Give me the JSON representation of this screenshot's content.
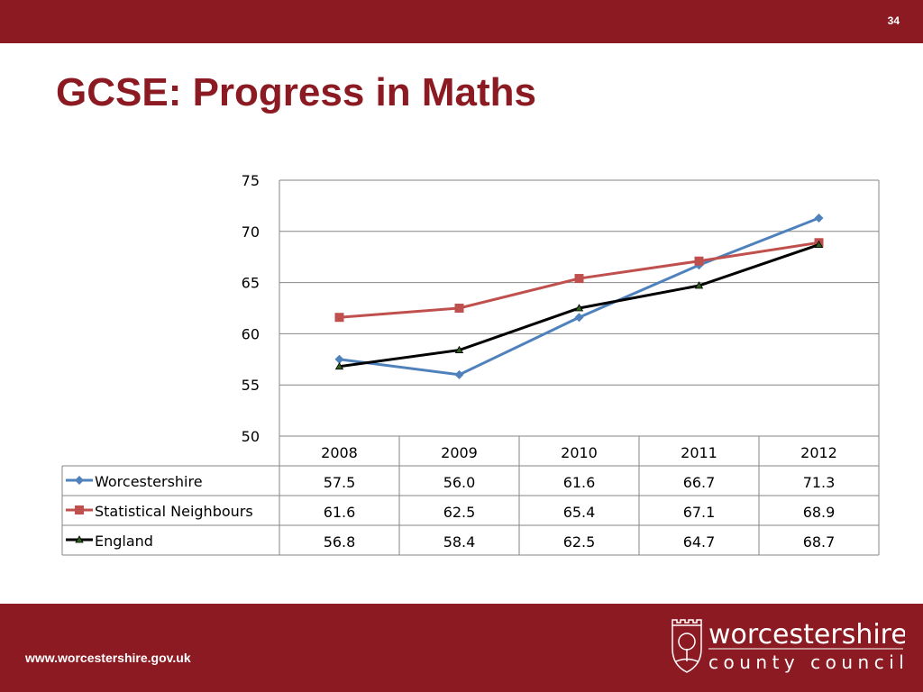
{
  "page_number": "34",
  "title": "GCSE: Progress in Maths",
  "footer": {
    "url": "www.worcestershire.gov.uk",
    "logo_text_1": "worcestershire",
    "logo_text_2": "county council"
  },
  "colors": {
    "brand": "#8b1a22",
    "Worcestershire": "#4f81bd",
    "Statistical Neighbours": "#c0504d",
    "England": "#000000"
  },
  "chart_data": {
    "type": "line",
    "categories": [
      "2008",
      "2009",
      "2010",
      "2011",
      "2012"
    ],
    "ylim": [
      50,
      75
    ],
    "yticks": [
      50,
      55,
      60,
      65,
      70,
      75
    ],
    "grid": true,
    "legend": "data-table",
    "series": [
      {
        "name": "Worcestershire",
        "marker": "diamond",
        "values": [
          57.5,
          56.0,
          61.6,
          66.7,
          71.3
        ]
      },
      {
        "name": "Statistical Neighbours",
        "marker": "square",
        "values": [
          61.6,
          62.5,
          65.4,
          67.1,
          68.9
        ]
      },
      {
        "name": "England",
        "marker": "triangle",
        "values": [
          56.8,
          58.4,
          62.5,
          64.7,
          68.7
        ]
      }
    ]
  }
}
